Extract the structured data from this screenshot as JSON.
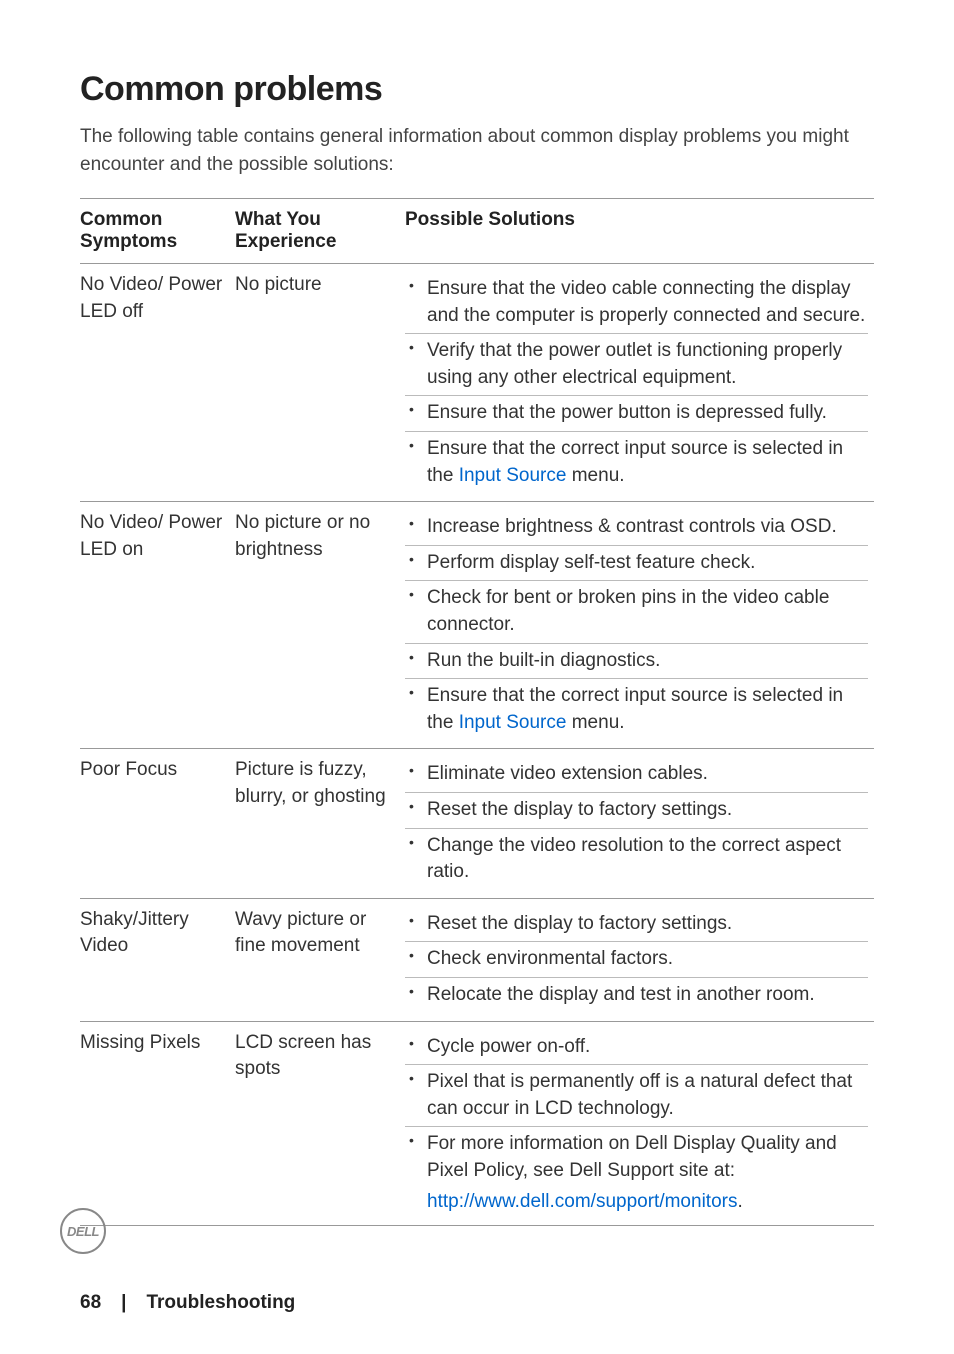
{
  "heading": "Common problems",
  "intro": "The following table contains general information about common display problems you might encounter and the possible solutions:",
  "columns": {
    "c1": "Common Symptoms",
    "c2": "What You Experience",
    "c3": "Possible Solutions"
  },
  "rows": [
    {
      "symptom": "No Video/ Power LED off",
      "experience": "No picture",
      "solutions": [
        {
          "text": "Ensure that the video cable connecting the display and the computer is properly connected and secure."
        },
        {
          "text": "Verify that the power outlet is functioning properly using any other electrical equipment."
        },
        {
          "text": "Ensure that the power button is depressed fully."
        },
        {
          "pre": "Ensure that the correct input source is selected in the ",
          "link": "Input Source",
          "post": " menu."
        }
      ]
    },
    {
      "symptom": "No Video/ Power LED on",
      "experience": "No picture or no brightness",
      "solutions": [
        {
          "text": "Increase brightness & contrast controls via OSD."
        },
        {
          "text": "Perform display self-test feature check."
        },
        {
          "text": "Check for bent or broken pins in the video cable connector."
        },
        {
          "text": "Run the built-in diagnostics."
        },
        {
          "pre": "Ensure that the correct input source is selected in the ",
          "link": "Input Source",
          "post": " menu."
        }
      ]
    },
    {
      "symptom": "Poor Focus",
      "experience": "Picture is fuzzy, blurry, or ghosting",
      "solutions": [
        {
          "text": "Eliminate video extension cables."
        },
        {
          "text": "Reset the display to factory settings."
        },
        {
          "text": "Change the video resolution to the correct aspect ratio."
        }
      ]
    },
    {
      "symptom": "Shaky/Jittery Video",
      "experience": "Wavy picture or fine movement",
      "solutions": [
        {
          "text": "Reset the display to factory settings."
        },
        {
          "text": "Check environmental factors."
        },
        {
          "text": "Relocate the display and test in another room."
        }
      ]
    },
    {
      "symptom": "Missing Pixels",
      "experience": "LCD screen has spots",
      "solutions": [
        {
          "text": "Cycle power on-off."
        },
        {
          "text": "Pixel that is permanently off is a natural defect that can occur in LCD technology."
        },
        {
          "text": "For more information on Dell Display Quality and Pixel Policy, see Dell Support site at:"
        }
      ],
      "trailing_link": "http://www.dell.com/support/monitors",
      "trailing_post": "."
    }
  ],
  "badge": "DELL",
  "footer": {
    "page": "68",
    "sep": "|",
    "section": "Troubleshooting"
  }
}
